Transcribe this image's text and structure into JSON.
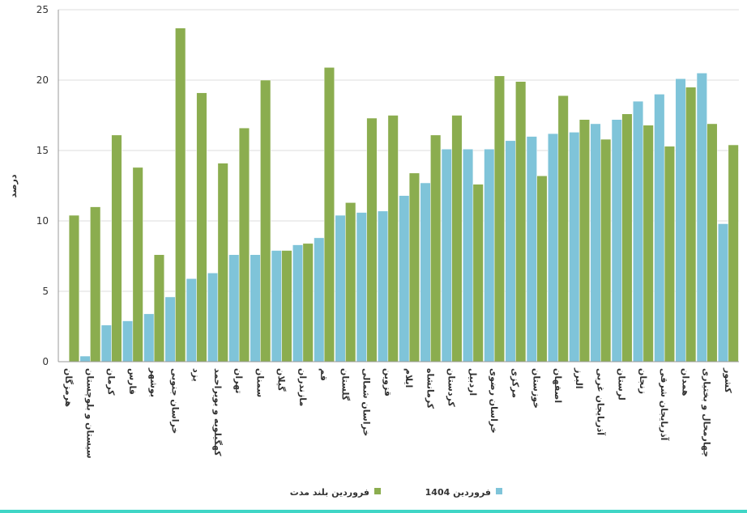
{
  "chart_data": {
    "type": "bar",
    "y_label": "درصد",
    "categories": [
      "هرمزگان",
      "سیستان و بلوچستان",
      "کرمان",
      "فارس",
      "بوشهر",
      "خراسان جنوبی",
      "یزد",
      "کهگیلویه و بویراحمد",
      "تهران",
      "سمنان",
      "گیلان",
      "مازندران",
      "قم",
      "گلستان",
      "خراسان شمالی",
      "قزوین",
      "ایلام",
      "کرمانشاه",
      "کردستان",
      "اردبیل",
      "خراسان رضوی",
      "مرکزی",
      "خوزستان",
      "اصفهان",
      "البرز",
      "آذربایجان غربی",
      "لرستان",
      "زنجان",
      "آذربایجان شرقی",
      "همدان",
      "چهارمحال و بختیاری",
      "کشور"
    ],
    "series": [
      {
        "name": "فروردین 1404",
        "color": "#7fc4d9",
        "values": [
          0,
          0.4,
          2.6,
          2.9,
          3.4,
          4.6,
          5.9,
          6.3,
          7.6,
          7.6,
          7.9,
          8.3,
          8.8,
          10.4,
          10.6,
          10.7,
          11.8,
          12.7,
          15.1,
          15.1,
          15.1,
          15.7,
          16.0,
          16.2,
          16.3,
          16.9,
          17.2,
          18.5,
          19.0,
          20.1,
          20.5,
          9.8
        ]
      },
      {
        "name": "فروردین بلند مدت",
        "color": "#8bad4f",
        "values": [
          10.4,
          11.0,
          16.1,
          13.8,
          7.6,
          23.7,
          19.1,
          14.1,
          16.6,
          20.0,
          7.9,
          8.4,
          20.9,
          11.3,
          17.3,
          17.5,
          13.4,
          16.1,
          17.5,
          12.6,
          20.3,
          19.9,
          13.2,
          18.9,
          17.2,
          15.8,
          17.6,
          16.8,
          15.3,
          19.5,
          16.9,
          15.4
        ]
      }
    ],
    "ylim": [
      0,
      25
    ],
    "yticks": [
      0,
      5,
      10,
      15,
      20,
      25
    ],
    "grid": true
  }
}
